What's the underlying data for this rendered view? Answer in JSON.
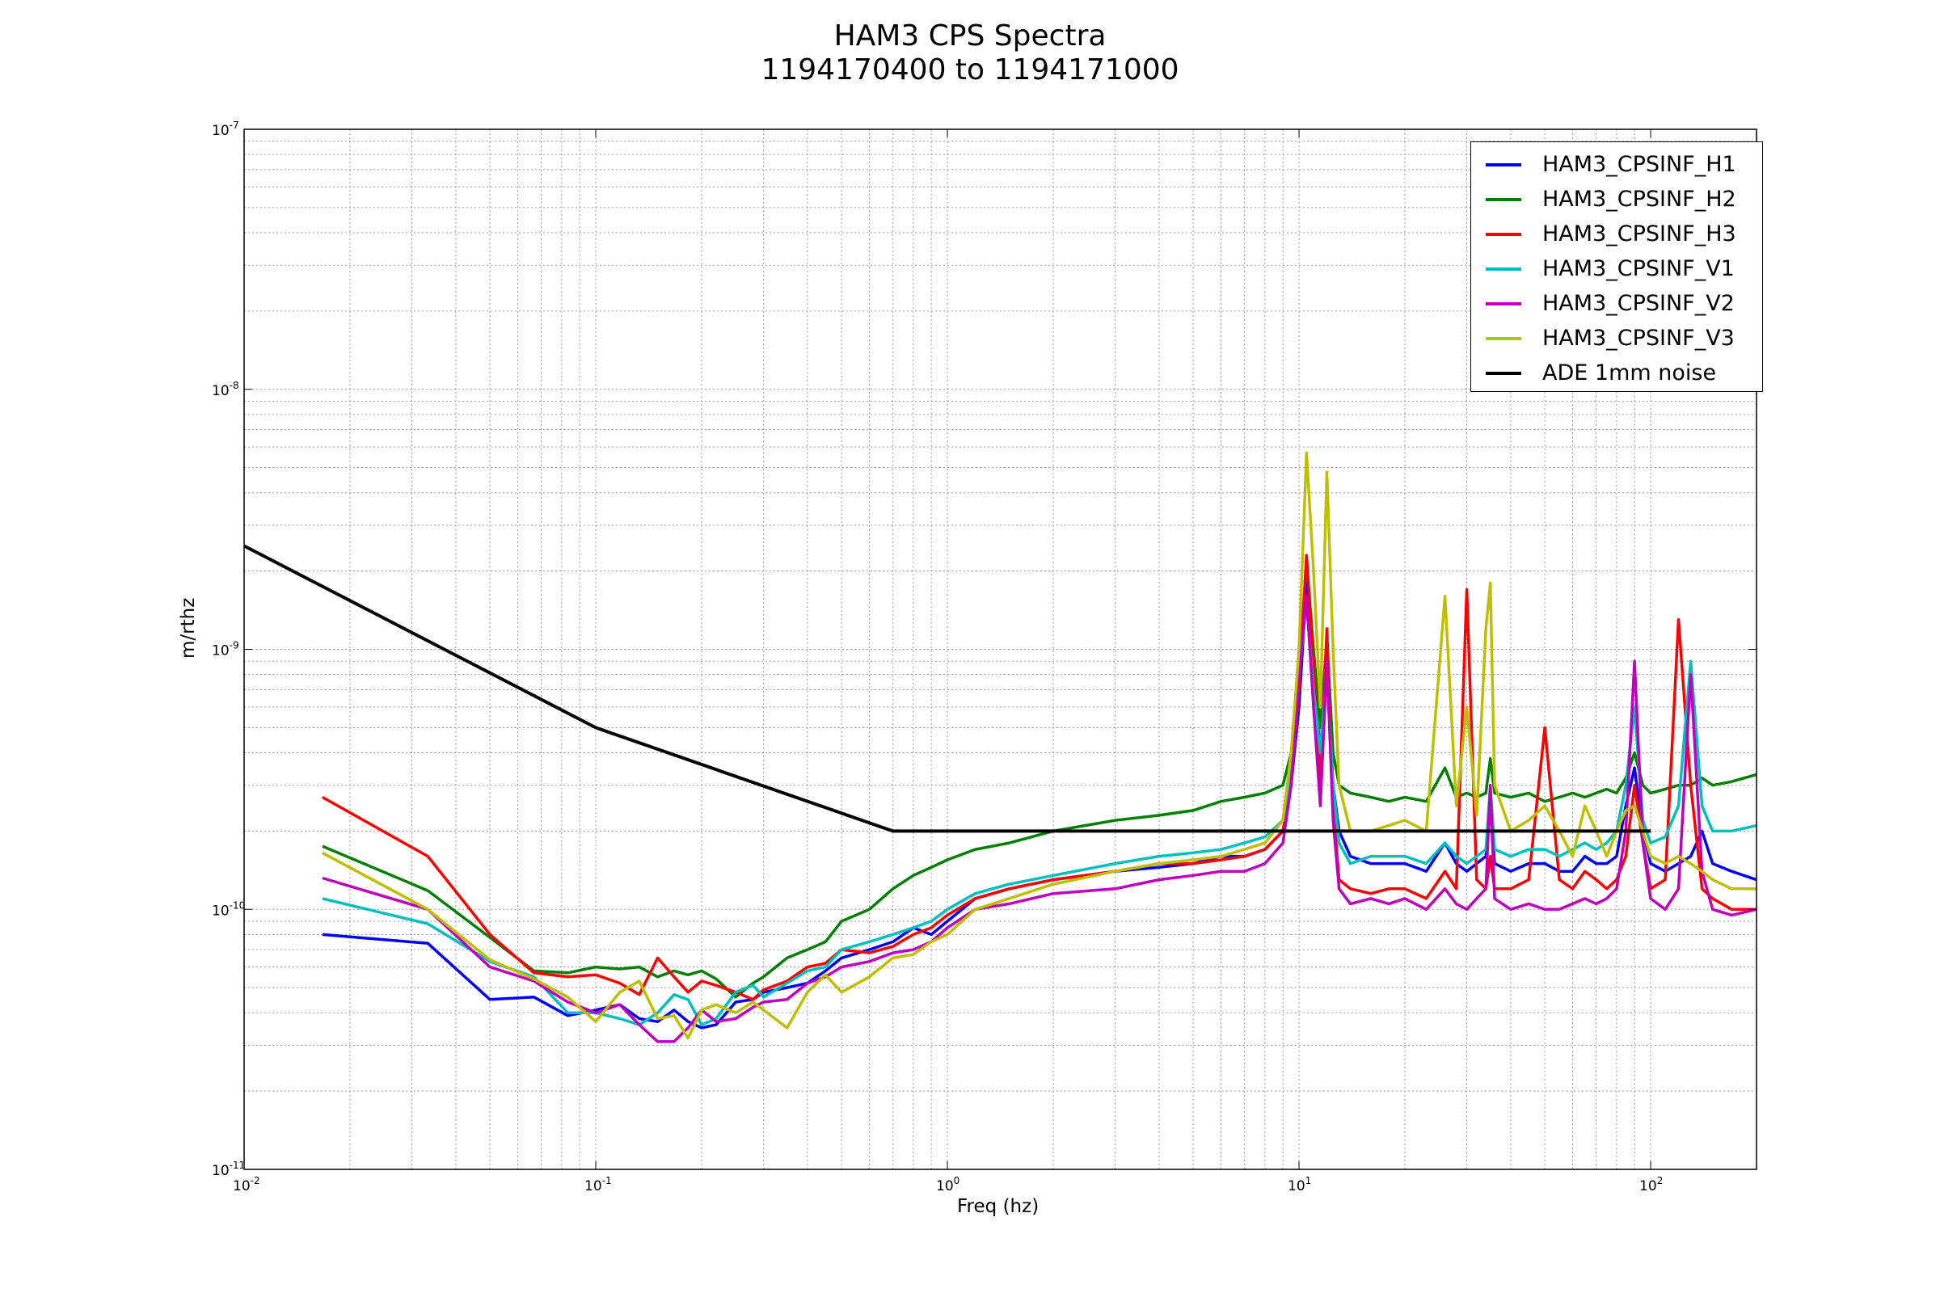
{
  "chart_data": {
    "type": "line",
    "title": "HAM3 CPS Spectra",
    "subtitle": "1194170400 to 1194171000",
    "xlabel": "Freq (hz)",
    "ylabel": "m/rthz",
    "xscale": "log",
    "yscale": "log",
    "xlim": [
      0.01,
      200
    ],
    "ylim": [
      1e-11,
      1e-07
    ],
    "grid": true,
    "legend_position": "top-right",
    "x_ticks": [
      {
        "base": "10",
        "exp": "-2",
        "value": 0.01
      },
      {
        "base": "10",
        "exp": "-1",
        "value": 0.1
      },
      {
        "base": "10",
        "exp": "0",
        "value": 1
      },
      {
        "base": "10",
        "exp": "1",
        "value": 10
      },
      {
        "base": "10",
        "exp": "2",
        "value": 100
      }
    ],
    "y_ticks": [
      {
        "base": "10",
        "exp": "-11",
        "value": 1e-11
      },
      {
        "base": "10",
        "exp": "-10",
        "value": 1e-10
      },
      {
        "base": "10",
        "exp": "-9",
        "value": 1e-09
      },
      {
        "base": "10",
        "exp": "-8",
        "value": 1e-08
      },
      {
        "base": "10",
        "exp": "-7",
        "value": 1e-07
      }
    ],
    "series": [
      {
        "name": "HAM3_CPSINF_H1",
        "color": "#0000ff",
        "x": [
          0.0167,
          0.0333,
          0.05,
          0.0667,
          0.0833,
          0.1,
          0.117,
          0.133,
          0.15,
          0.167,
          0.183,
          0.2,
          0.22,
          0.25,
          0.28,
          0.3,
          0.35,
          0.4,
          0.45,
          0.5,
          0.6,
          0.7,
          0.8,
          0.9,
          1.0,
          1.2,
          1.5,
          2.0,
          3.0,
          4.0,
          5.0,
          6.0,
          7.0,
          8.0,
          9.0,
          9.5,
          10.0,
          10.5,
          11.0,
          11.5,
          12.0,
          12.5,
          13.0,
          14.0,
          16.0,
          18.0,
          20.0,
          23.0,
          26.0,
          28.0,
          30.0,
          32.0,
          34.0,
          35.0,
          36.0,
          40.0,
          45.0,
          50.0,
          55.0,
          60.0,
          65.0,
          70.0,
          75.0,
          80.0,
          85.0,
          90.0,
          95.0,
          100.0,
          110.0,
          120.0,
          130.0,
          140.0,
          150.0,
          170.0,
          200.0
        ],
        "y": [
          8e-11,
          7.4e-11,
          4.5e-11,
          4.6e-11,
          3.9e-11,
          4.1e-11,
          4.3e-11,
          3.8e-11,
          3.7e-11,
          4.1e-11,
          3.7e-11,
          3.5e-11,
          3.6e-11,
          4.4e-11,
          4.5e-11,
          4.8e-11,
          5e-11,
          5.2e-11,
          5.8e-11,
          6.5e-11,
          7e-11,
          7.5e-11,
          8.5e-11,
          8e-11,
          9e-11,
          1.1e-10,
          1.2e-10,
          1.3e-10,
          1.4e-10,
          1.45e-10,
          1.5e-10,
          1.6e-10,
          1.6e-10,
          1.7e-10,
          2e-10,
          3e-10,
          6e-10,
          1.8e-09,
          8e-10,
          4e-10,
          9e-10,
          3e-10,
          2e-10,
          1.6e-10,
          1.5e-10,
          1.5e-10,
          1.5e-10,
          1.4e-10,
          1.8e-10,
          1.5e-10,
          1.4e-10,
          1.5e-10,
          1.6e-10,
          2.5e-10,
          1.5e-10,
          1.4e-10,
          1.5e-10,
          1.5e-10,
          1.4e-10,
          1.4e-10,
          1.6e-10,
          1.5e-10,
          1.5e-10,
          1.6e-10,
          2.5e-10,
          3.5e-10,
          2e-10,
          1.5e-10,
          1.4e-10,
          1.5e-10,
          1.6e-10,
          2e-10,
          1.5e-10,
          1.4e-10,
          1.3e-10
        ]
      },
      {
        "name": "HAM3_CPSINF_H2",
        "color": "#008000",
        "x": [
          0.0167,
          0.0333,
          0.05,
          0.0667,
          0.0833,
          0.1,
          0.117,
          0.133,
          0.15,
          0.167,
          0.183,
          0.2,
          0.22,
          0.25,
          0.28,
          0.3,
          0.35,
          0.4,
          0.45,
          0.5,
          0.6,
          0.7,
          0.8,
          0.9,
          1.0,
          1.2,
          1.5,
          2.0,
          3.0,
          4.0,
          5.0,
          6.0,
          7.0,
          8.0,
          9.0,
          9.5,
          10.0,
          10.5,
          11.0,
          11.5,
          12.0,
          12.5,
          13.0,
          14.0,
          16.0,
          18.0,
          20.0,
          23.0,
          26.0,
          28.0,
          30.0,
          32.0,
          34.0,
          35.0,
          36.0,
          40.0,
          45.0,
          50.0,
          55.0,
          60.0,
          65.0,
          70.0,
          75.0,
          80.0,
          85.0,
          90.0,
          95.0,
          100.0,
          110.0,
          120.0,
          130.0,
          140.0,
          150.0,
          170.0,
          200.0
        ],
        "y": [
          1.75e-10,
          1.18e-10,
          7.8e-11,
          5.8e-11,
          5.7e-11,
          6e-11,
          5.9e-11,
          6e-11,
          5.5e-11,
          5.8e-11,
          5.6e-11,
          5.8e-11,
          5.4e-11,
          4.6e-11,
          5.2e-11,
          5.5e-11,
          6.5e-11,
          7e-11,
          7.5e-11,
          9e-11,
          1e-10,
          1.2e-10,
          1.35e-10,
          1.45e-10,
          1.55e-10,
          1.7e-10,
          1.8e-10,
          2e-10,
          2.2e-10,
          2.3e-10,
          2.4e-10,
          2.6e-10,
          2.7e-10,
          2.8e-10,
          3e-10,
          4e-10,
          8e-10,
          2.2e-09,
          1e-09,
          5e-10,
          1.1e-09,
          4e-10,
          3e-10,
          2.8e-10,
          2.7e-10,
          2.6e-10,
          2.7e-10,
          2.6e-10,
          3.5e-10,
          2.7e-10,
          2.8e-10,
          2.7e-10,
          2.8e-10,
          3.8e-10,
          2.8e-10,
          2.7e-10,
          2.8e-10,
          2.6e-10,
          2.7e-10,
          2.8e-10,
          2.7e-10,
          2.8e-10,
          2.9e-10,
          2.8e-10,
          3.2e-10,
          4e-10,
          3e-10,
          2.8e-10,
          2.9e-10,
          3e-10,
          3e-10,
          3.2e-10,
          3e-10,
          3.1e-10,
          3.3e-10
        ]
      },
      {
        "name": "HAM3_CPSINF_H3",
        "color": "#ff0000",
        "x": [
          0.0167,
          0.0333,
          0.05,
          0.0667,
          0.0833,
          0.1,
          0.117,
          0.133,
          0.15,
          0.167,
          0.183,
          0.2,
          0.22,
          0.25,
          0.28,
          0.3,
          0.35,
          0.4,
          0.45,
          0.5,
          0.6,
          0.7,
          0.8,
          0.9,
          1.0,
          1.2,
          1.5,
          2.0,
          3.0,
          4.0,
          5.0,
          6.0,
          7.0,
          8.0,
          9.0,
          9.5,
          10.0,
          10.5,
          11.0,
          11.5,
          12.0,
          12.5,
          13.0,
          14.0,
          16.0,
          18.0,
          20.0,
          23.0,
          26.0,
          28.0,
          30.0,
          32.0,
          34.0,
          35.0,
          36.0,
          40.0,
          45.0,
          50.0,
          55.0,
          60.0,
          65.0,
          70.0,
          75.0,
          80.0,
          85.0,
          90.0,
          95.0,
          100.0,
          110.0,
          120.0,
          130.0,
          140.0,
          150.0,
          170.0,
          200.0
        ],
        "y": [
          2.7e-10,
          1.6e-10,
          8e-11,
          5.7e-11,
          5.5e-11,
          5.6e-11,
          5.2e-11,
          4.7e-11,
          6.5e-11,
          5.5e-11,
          4.8e-11,
          5.3e-11,
          5.1e-11,
          4.8e-11,
          4.5e-11,
          4.9e-11,
          5.3e-11,
          6e-11,
          6.2e-11,
          7e-11,
          6.8e-11,
          7.2e-11,
          8e-11,
          8.5e-11,
          9.5e-11,
          1.1e-10,
          1.2e-10,
          1.3e-10,
          1.4e-10,
          1.5e-10,
          1.5e-10,
          1.55e-10,
          1.6e-10,
          1.7e-10,
          2e-10,
          3e-10,
          7e-10,
          2.3e-09,
          9e-10,
          3e-10,
          1.2e-09,
          2.5e-10,
          1.3e-10,
          1.2e-10,
          1.15e-10,
          1.2e-10,
          1.2e-10,
          1.1e-10,
          1.4e-10,
          1.2e-10,
          1.7e-09,
          1.3e-10,
          1.2e-10,
          1.6e-10,
          1.2e-10,
          1.2e-10,
          1.3e-10,
          5e-10,
          1.3e-10,
          1.2e-10,
          1.4e-10,
          1.3e-10,
          1.2e-10,
          1.3e-10,
          1.6e-10,
          3e-10,
          1.8e-10,
          1.2e-10,
          1.3e-10,
          1.3e-09,
          3e-10,
          1.2e-10,
          1.1e-10,
          1e-10,
          1e-10
        ]
      },
      {
        "name": "HAM3_CPSINF_V1",
        "color": "#00bfbf",
        "x": [
          0.0167,
          0.0333,
          0.05,
          0.0667,
          0.0833,
          0.1,
          0.117,
          0.133,
          0.15,
          0.167,
          0.183,
          0.2,
          0.22,
          0.25,
          0.28,
          0.3,
          0.35,
          0.4,
          0.45,
          0.5,
          0.6,
          0.7,
          0.8,
          0.9,
          1.0,
          1.2,
          1.5,
          2.0,
          3.0,
          4.0,
          5.0,
          6.0,
          7.0,
          8.0,
          9.0,
          9.5,
          10.0,
          10.5,
          11.0,
          11.5,
          12.0,
          12.5,
          13.0,
          14.0,
          16.0,
          18.0,
          20.0,
          23.0,
          26.0,
          28.0,
          30.0,
          32.0,
          34.0,
          35.0,
          36.0,
          40.0,
          45.0,
          50.0,
          55.0,
          60.0,
          65.0,
          70.0,
          75.0,
          80.0,
          85.0,
          90.0,
          95.0,
          100.0,
          110.0,
          120.0,
          130.0,
          140.0,
          150.0,
          170.0,
          200.0
        ],
        "y": [
          1.1e-10,
          8.8e-11,
          6.3e-11,
          5.5e-11,
          4e-11,
          4e-11,
          3.8e-11,
          3.6e-11,
          4e-11,
          4.7e-11,
          4.5e-11,
          3.6e-11,
          3.8e-11,
          4.8e-11,
          5.1e-11,
          4.6e-11,
          5.2e-11,
          5.8e-11,
          6e-11,
          7e-11,
          7.5e-11,
          8e-11,
          8.5e-11,
          9e-11,
          1e-10,
          1.15e-10,
          1.25e-10,
          1.35e-10,
          1.5e-10,
          1.6e-10,
          1.65e-10,
          1.7e-10,
          1.8e-10,
          1.9e-10,
          2.2e-10,
          3.5e-10,
          8e-10,
          1.5e-09,
          7e-10,
          4e-10,
          8e-10,
          3e-10,
          1.8e-10,
          1.5e-10,
          1.6e-10,
          1.6e-10,
          1.6e-10,
          1.5e-10,
          1.8e-10,
          1.6e-10,
          1.5e-10,
          1.6e-10,
          1.7e-10,
          3e-10,
          1.7e-10,
          1.6e-10,
          1.7e-10,
          1.7e-10,
          1.6e-10,
          1.7e-10,
          1.8e-10,
          1.7e-10,
          1.8e-10,
          2e-10,
          3e-10,
          6e-10,
          2.2e-10,
          1.8e-10,
          1.9e-10,
          2.5e-10,
          9e-10,
          2.5e-10,
          2e-10,
          2e-10,
          2.1e-10
        ]
      },
      {
        "name": "HAM3_CPSINF_V2",
        "color": "#bf00bf",
        "x": [
          0.0167,
          0.0333,
          0.05,
          0.0667,
          0.0833,
          0.1,
          0.117,
          0.133,
          0.15,
          0.167,
          0.183,
          0.2,
          0.22,
          0.25,
          0.28,
          0.3,
          0.35,
          0.4,
          0.45,
          0.5,
          0.6,
          0.7,
          0.8,
          0.9,
          1.0,
          1.2,
          1.5,
          2.0,
          3.0,
          4.0,
          5.0,
          6.0,
          7.0,
          8.0,
          9.0,
          9.5,
          10.0,
          10.5,
          11.0,
          11.5,
          12.0,
          12.5,
          13.0,
          14.0,
          16.0,
          18.0,
          20.0,
          23.0,
          26.0,
          28.0,
          30.0,
          32.0,
          34.0,
          35.0,
          36.0,
          40.0,
          45.0,
          50.0,
          55.0,
          60.0,
          65.0,
          70.0,
          75.0,
          80.0,
          85.0,
          90.0,
          95.0,
          100.0,
          110.0,
          120.0,
          130.0,
          140.0,
          150.0,
          170.0,
          200.0
        ],
        "y": [
          1.32e-10,
          1e-10,
          6e-11,
          5.3e-11,
          4.4e-11,
          4e-11,
          4.3e-11,
          3.6e-11,
          3.1e-11,
          3.1e-11,
          3.5e-11,
          4.1e-11,
          3.7e-11,
          3.8e-11,
          4.2e-11,
          4.4e-11,
          4.5e-11,
          5.2e-11,
          5.5e-11,
          6e-11,
          6.3e-11,
          6.8e-11,
          7e-11,
          7.5e-11,
          8.5e-11,
          1e-10,
          1.05e-10,
          1.15e-10,
          1.2e-10,
          1.3e-10,
          1.35e-10,
          1.4e-10,
          1.4e-10,
          1.5e-10,
          1.8e-10,
          3e-10,
          8e-10,
          1.6e-09,
          6e-10,
          2.5e-10,
          9e-10,
          2.2e-10,
          1.2e-10,
          1.05e-10,
          1.1e-10,
          1.05e-10,
          1.1e-10,
          1e-10,
          1.2e-10,
          1.05e-10,
          1e-10,
          1.1e-10,
          1.2e-10,
          3e-10,
          1.1e-10,
          1e-10,
          1.05e-10,
          1e-10,
          1e-10,
          1.05e-10,
          1.1e-10,
          1.05e-10,
          1.1e-10,
          1.2e-10,
          2e-10,
          9e-10,
          1.8e-10,
          1.1e-10,
          1e-10,
          1.2e-10,
          8e-10,
          1.4e-10,
          1e-10,
          9.5e-11,
          1e-10
        ]
      },
      {
        "name": "HAM3_CPSINF_V3",
        "color": "#bfbf00",
        "x": [
          0.0167,
          0.0333,
          0.05,
          0.0667,
          0.0833,
          0.1,
          0.117,
          0.133,
          0.15,
          0.167,
          0.183,
          0.2,
          0.22,
          0.25,
          0.28,
          0.3,
          0.35,
          0.4,
          0.45,
          0.5,
          0.6,
          0.7,
          0.8,
          0.9,
          1.0,
          1.2,
          1.5,
          2.0,
          3.0,
          4.0,
          5.0,
          6.0,
          7.0,
          8.0,
          9.0,
          9.5,
          10.0,
          10.5,
          11.0,
          11.5,
          12.0,
          12.5,
          13.0,
          14.0,
          16.0,
          18.0,
          20.0,
          23.0,
          26.0,
          28.0,
          30.0,
          32.0,
          34.0,
          35.0,
          36.0,
          40.0,
          45.0,
          50.0,
          55.0,
          60.0,
          65.0,
          70.0,
          75.0,
          80.0,
          85.0,
          90.0,
          95.0,
          100.0,
          110.0,
          120.0,
          130.0,
          140.0,
          150.0,
          170.0,
          200.0
        ],
        "y": [
          1.65e-10,
          1e-10,
          6.4e-11,
          5.4e-11,
          4.6e-11,
          3.7e-11,
          4.8e-11,
          5.3e-11,
          3.8e-11,
          3.9e-11,
          3.2e-11,
          4.1e-11,
          4.3e-11,
          4e-11,
          4.4e-11,
          4.1e-11,
          3.5e-11,
          4.8e-11,
          5.6e-11,
          4.8e-11,
          5.5e-11,
          6.5e-11,
          6.7e-11,
          7.5e-11,
          8e-11,
          1e-10,
          1.1e-10,
          1.25e-10,
          1.4e-10,
          1.5e-10,
          1.55e-10,
          1.6e-10,
          1.7e-10,
          1.8e-10,
          2.2e-10,
          4e-10,
          1e-09,
          5.7e-09,
          2e-09,
          6e-10,
          4.8e-09,
          1e-09,
          3e-10,
          2e-10,
          2e-10,
          2.1e-10,
          2.2e-10,
          2e-10,
          1.6e-09,
          2.5e-10,
          6e-10,
          2.3e-10,
          1.2e-09,
          1.8e-09,
          3e-10,
          2e-10,
          2.2e-10,
          2.5e-10,
          2e-10,
          1.6e-10,
          2.5e-10,
          2e-10,
          1.6e-10,
          2e-10,
          2.4e-10,
          2.5e-10,
          2e-10,
          1.6e-10,
          1.5e-10,
          1.6e-10,
          1.5e-10,
          1.4e-10,
          1.3e-10,
          1.2e-10,
          1.2e-10
        ]
      },
      {
        "name": "ADE 1mm noise",
        "color": "#000000",
        "x": [
          0.01,
          0.1,
          0.7,
          100
        ],
        "y": [
          2.5e-09,
          5e-10,
          2e-10,
          2e-10
        ]
      }
    ]
  }
}
